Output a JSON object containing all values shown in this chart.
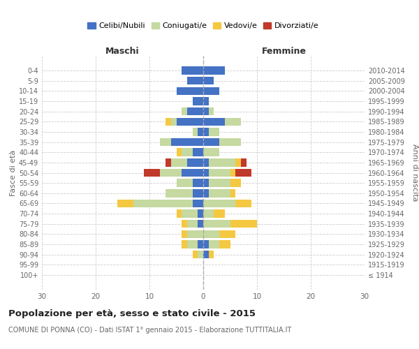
{
  "age_groups": [
    "100+",
    "95-99",
    "90-94",
    "85-89",
    "80-84",
    "75-79",
    "70-74",
    "65-69",
    "60-64",
    "55-59",
    "50-54",
    "45-49",
    "40-44",
    "35-39",
    "30-34",
    "25-29",
    "20-24",
    "15-19",
    "10-14",
    "5-9",
    "0-4"
  ],
  "birth_years": [
    "≤ 1914",
    "1915-1919",
    "1920-1924",
    "1925-1929",
    "1930-1934",
    "1935-1939",
    "1940-1944",
    "1945-1949",
    "1950-1954",
    "1955-1959",
    "1960-1964",
    "1965-1969",
    "1970-1974",
    "1975-1979",
    "1980-1984",
    "1985-1989",
    "1990-1994",
    "1995-1999",
    "2000-2004",
    "2005-2009",
    "2010-2014"
  ],
  "maschi_celibi": [
    0,
    0,
    0,
    1,
    0,
    1,
    1,
    2,
    2,
    2,
    4,
    3,
    2,
    6,
    1,
    5,
    3,
    2,
    5,
    3,
    4
  ],
  "maschi_coniugati": [
    0,
    0,
    1,
    2,
    3,
    2,
    3,
    11,
    5,
    3,
    4,
    3,
    2,
    2,
    1,
    1,
    1,
    0,
    0,
    0,
    0
  ],
  "maschi_vedovi": [
    0,
    0,
    1,
    1,
    1,
    1,
    1,
    3,
    0,
    0,
    0,
    0,
    1,
    0,
    0,
    1,
    0,
    0,
    0,
    0,
    0
  ],
  "maschi_divorziati": [
    0,
    0,
    0,
    0,
    0,
    0,
    0,
    0,
    0,
    0,
    3,
    1,
    0,
    0,
    0,
    0,
    0,
    0,
    0,
    0,
    0
  ],
  "femmine_celibi": [
    0,
    0,
    1,
    1,
    0,
    0,
    0,
    0,
    1,
    1,
    1,
    1,
    0,
    3,
    1,
    4,
    1,
    1,
    3,
    2,
    4
  ],
  "femmine_coniugati": [
    0,
    0,
    0,
    2,
    3,
    5,
    2,
    6,
    4,
    4,
    4,
    5,
    3,
    4,
    2,
    3,
    1,
    0,
    0,
    0,
    0
  ],
  "femmine_vedovi": [
    0,
    0,
    1,
    2,
    3,
    5,
    2,
    3,
    1,
    2,
    1,
    1,
    0,
    0,
    0,
    0,
    0,
    0,
    0,
    0,
    0
  ],
  "femmine_divorziati": [
    0,
    0,
    0,
    0,
    0,
    0,
    0,
    0,
    0,
    0,
    3,
    1,
    0,
    0,
    0,
    0,
    0,
    0,
    0,
    0,
    0
  ],
  "color_celibi": "#4472c4",
  "color_coniugati": "#c5d9a0",
  "color_vedovi": "#f5c842",
  "color_divorziati": "#c0392b",
  "title_main": "Popolazione per età, sesso e stato civile - 2015",
  "title_sub": "COMUNE DI PONNA (CO) - Dati ISTAT 1° gennaio 2015 - Elaborazione TUTTITALIA.IT",
  "ylabel_left": "Fasce di età",
  "ylabel_right": "Anni di nascita",
  "xlabel_maschi": "Maschi",
  "xlabel_femmine": "Femmine",
  "xlim": 30,
  "background_color": "#ffffff",
  "legend_labels": [
    "Celibi/Nubili",
    "Coniugati/e",
    "Vedovi/e",
    "Divorziati/e"
  ]
}
